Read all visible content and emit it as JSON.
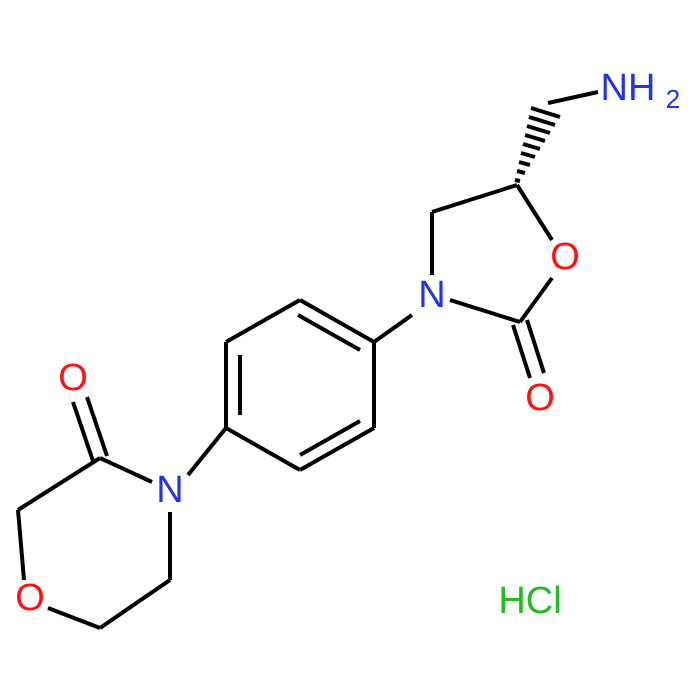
{
  "atoms": {
    "amine": {
      "text": "NH",
      "subscript": "2"
    },
    "oxazolidinone_ring_o": "O",
    "oxazolidinone_n": "N",
    "oxazolidinone_carbonyl_o": "O",
    "morpholinone_n": "N",
    "morpholinone_carbonyl_o": "O",
    "morpholinone_ring_o": "O"
  },
  "salt": "HCl"
}
